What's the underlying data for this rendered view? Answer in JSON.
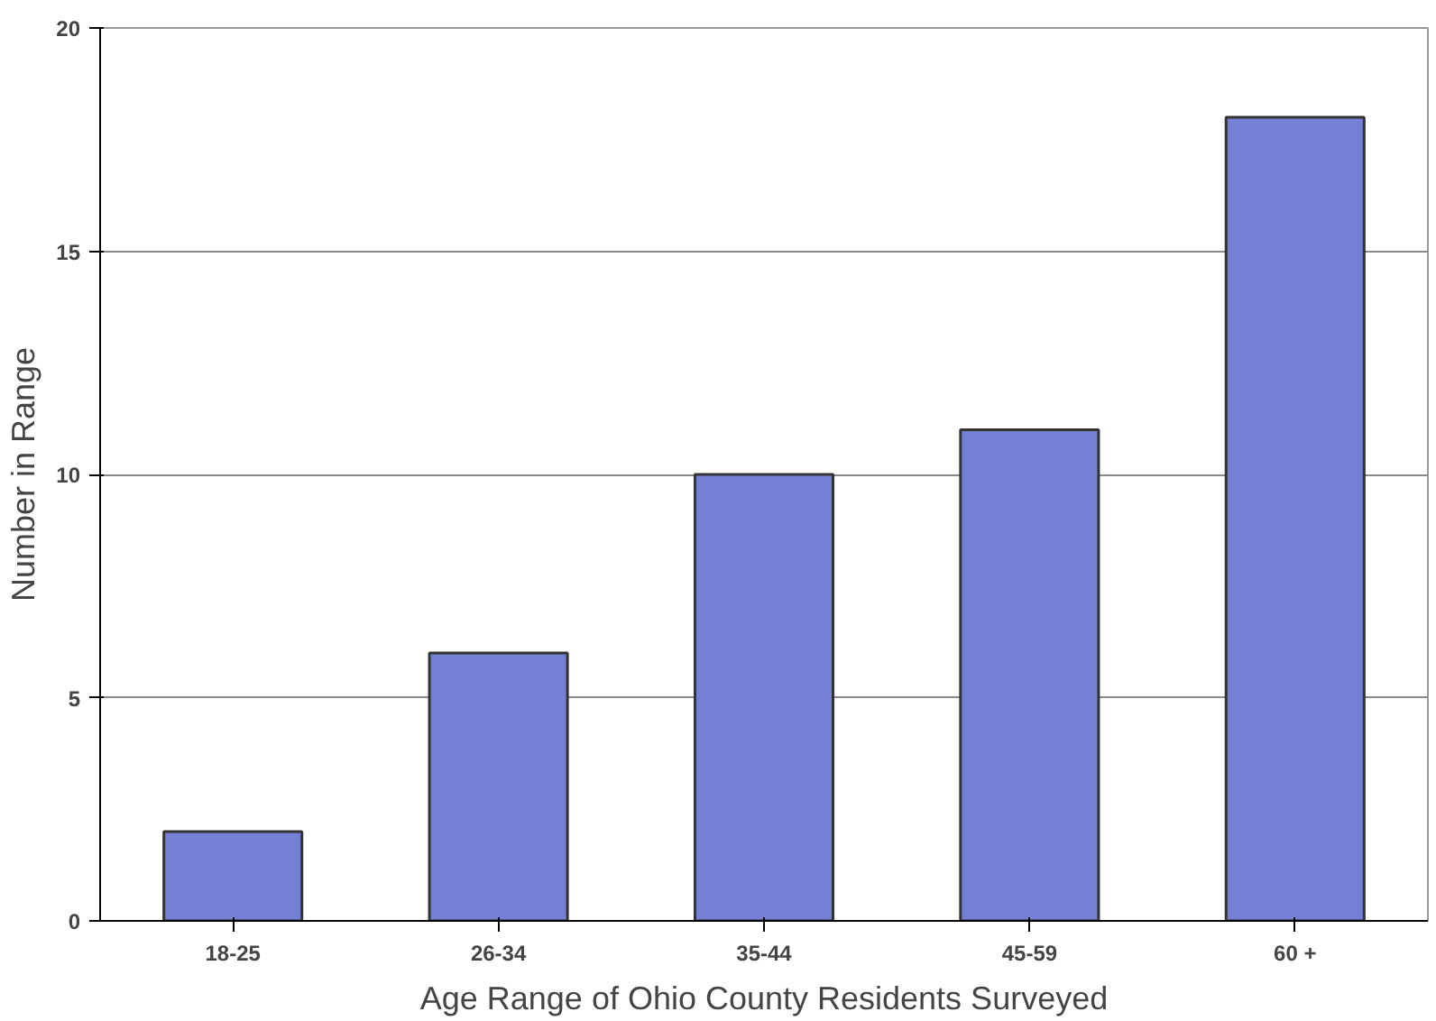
{
  "chart_data": {
    "type": "bar",
    "xlabel": "Age Range of Ohio County Residents Surveyed",
    "ylabel": "Number in Range",
    "categories": [
      "18-25",
      "26-34",
      "35-44",
      "45-59",
      "60 +"
    ],
    "values": [
      2,
      6,
      10,
      11,
      18
    ],
    "color": "#7480d4",
    "ylim": [
      0,
      20
    ],
    "yticks": [
      0,
      5,
      10,
      15,
      20
    ],
    "grid": "y"
  }
}
